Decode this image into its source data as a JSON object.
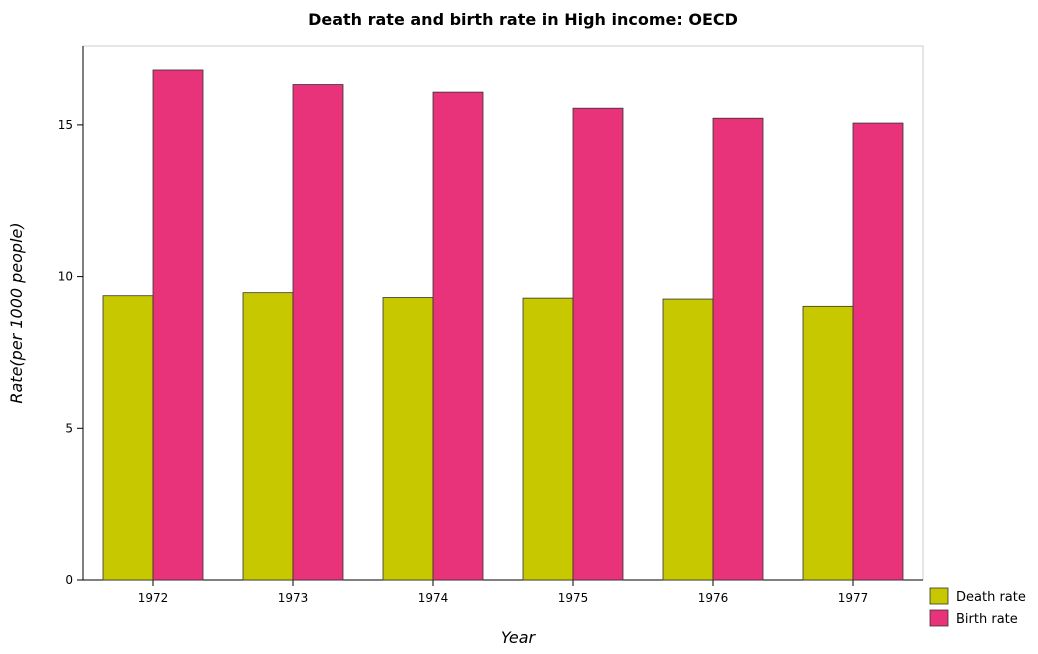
{
  "chart_data": {
    "type": "bar",
    "title": "Death rate and birth rate in High income: OECD",
    "xlabel": "Year",
    "ylabel": "Rate(per 1000 people)",
    "categories": [
      "1972",
      "1973",
      "1974",
      "1975",
      "1976",
      "1977"
    ],
    "series": [
      {
        "name": "Death rate",
        "color": "#c8c800",
        "values": [
          9.37,
          9.47,
          9.31,
          9.29,
          9.26,
          9.02
        ]
      },
      {
        "name": "Birth rate",
        "color": "#e8327a",
        "values": [
          16.81,
          16.33,
          16.08,
          15.55,
          15.22,
          15.06
        ]
      }
    ],
    "ylim": [
      0,
      17.6
    ],
    "yticks": [
      0,
      5,
      10,
      15
    ],
    "legend_position": "bottom-right"
  }
}
